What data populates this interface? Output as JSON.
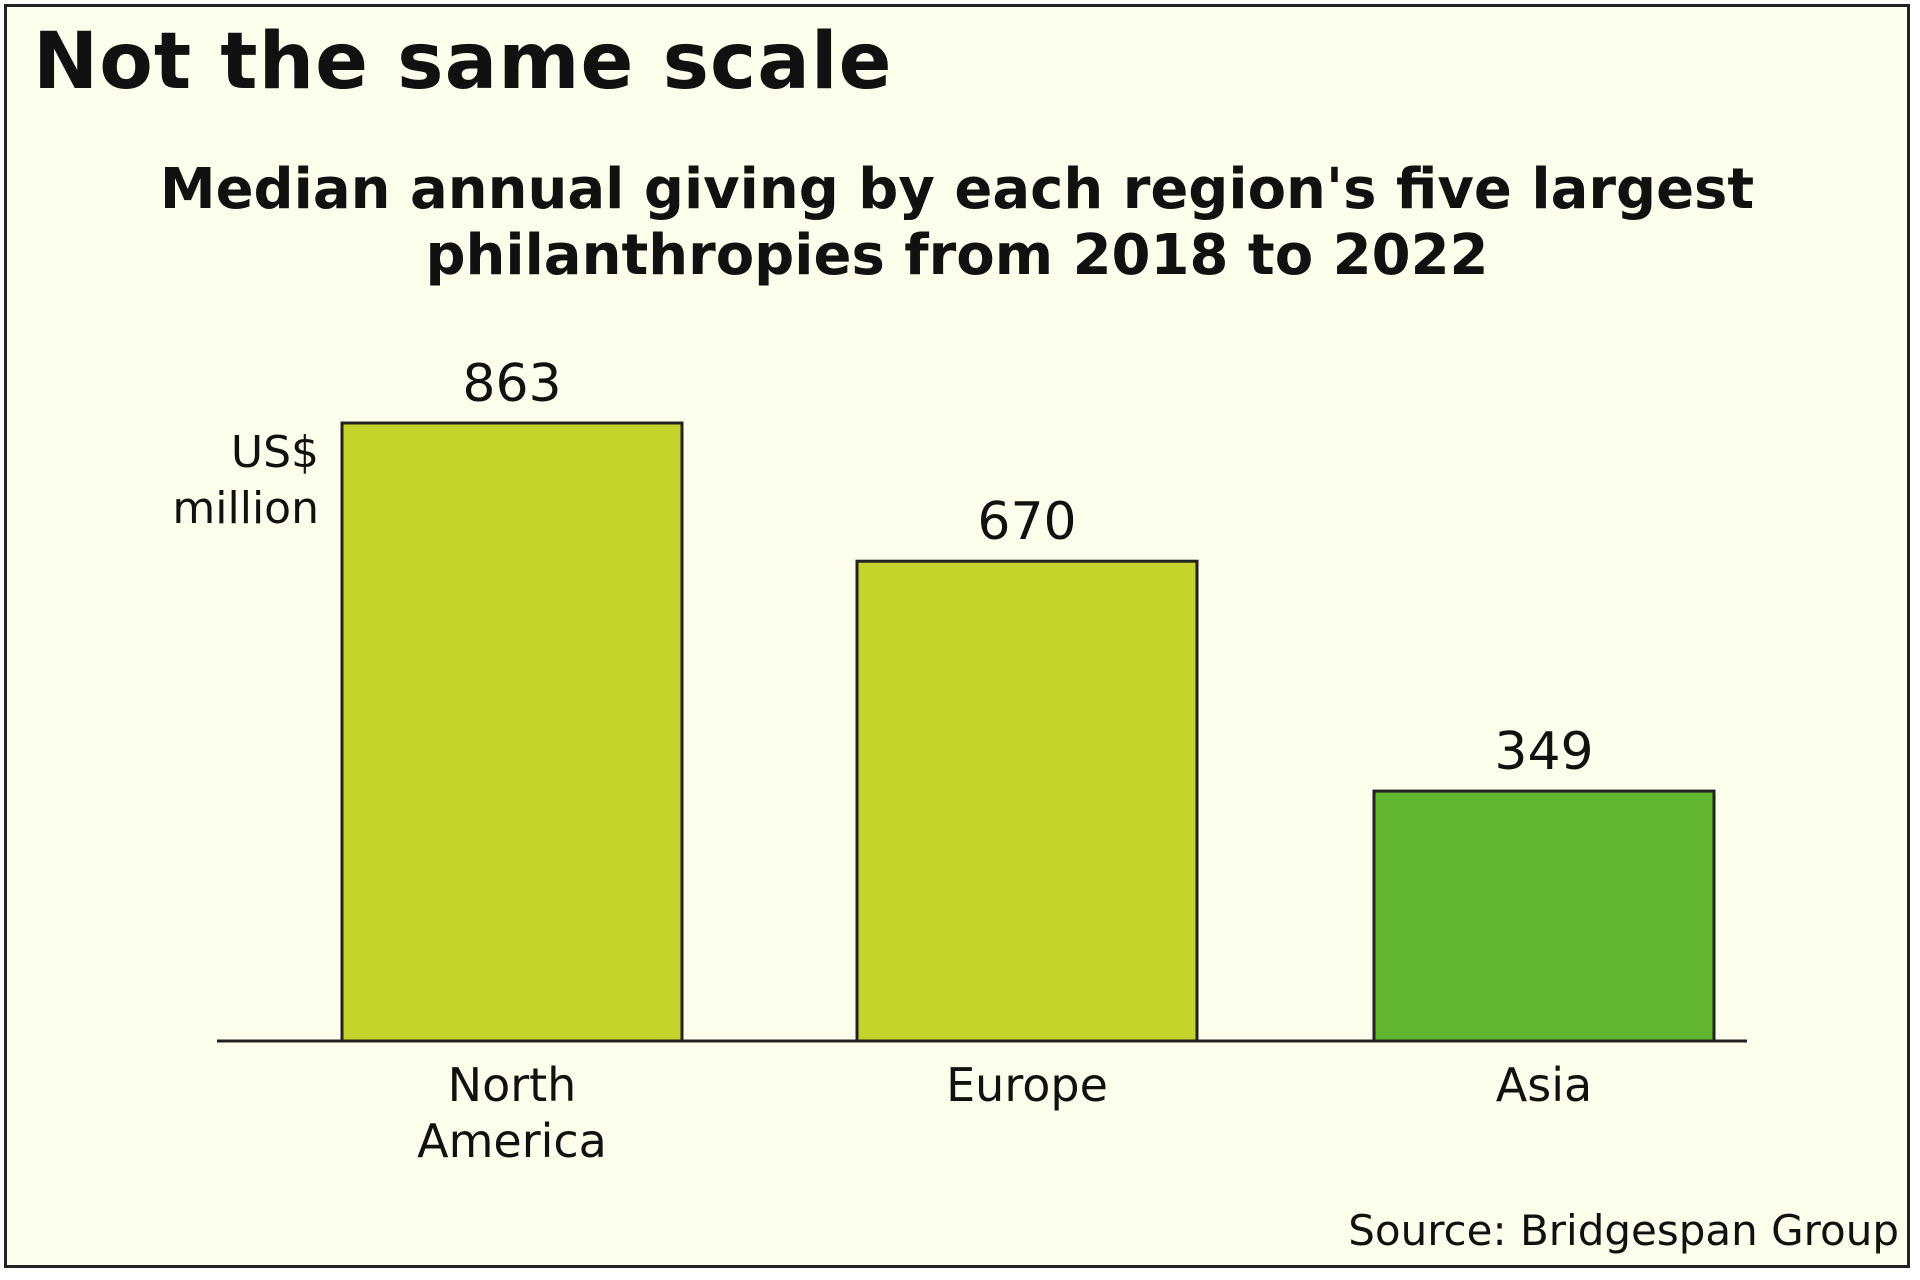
{
  "title": "Not the same scale",
  "subtitle_lines": [
    "Median annual giving by each region's five largest",
    "philanthropies from 2018 to 2022"
  ],
  "unit_lines": [
    "US$",
    "million"
  ],
  "source": "Source: Bridgespan Group",
  "colors": {
    "background": "#fcfdea",
    "bar_light": "#c5d42a",
    "bar_dark": "#62b52f",
    "outline": "#222222"
  },
  "chart_data": {
    "type": "bar",
    "categories": [
      "North America",
      "Europe",
      "Asia"
    ],
    "category_label_lines": [
      [
        "North",
        "America"
      ],
      [
        "Europe"
      ],
      [
        "Asia"
      ]
    ],
    "values": [
      863,
      670,
      349
    ],
    "data_labels": [
      "863",
      "670",
      "349"
    ],
    "bar_colors": [
      "#c5d42a",
      "#c5d42a",
      "#62b52f"
    ],
    "ylabel": "US$ million",
    "grid": false,
    "legend": "none"
  }
}
